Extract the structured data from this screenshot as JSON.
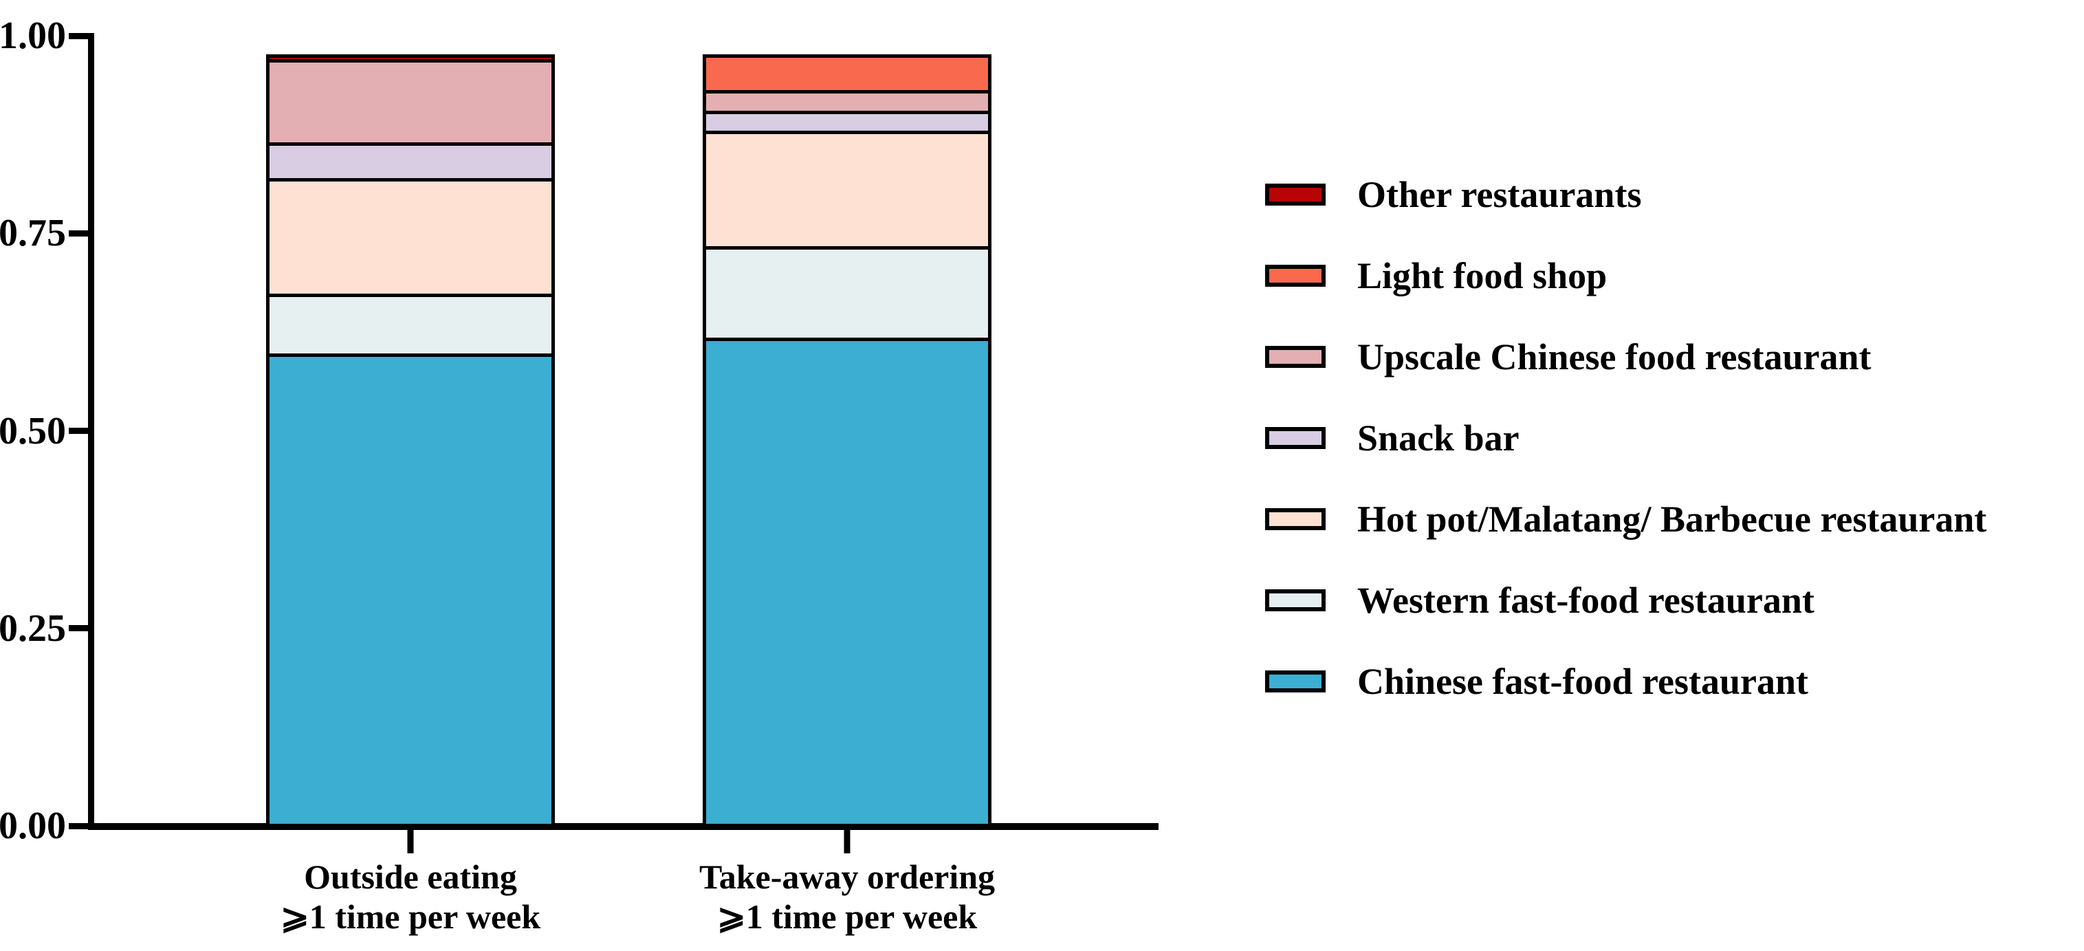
{
  "chart_data": {
    "type": "bar",
    "stacked": true,
    "title": "",
    "xlabel": "",
    "ylabel": "",
    "ylim": [
      0,
      1
    ],
    "grid": false,
    "bar_outline_color": "#000000",
    "yticks": [
      {
        "value": 1.0,
        "label": "1.00"
      },
      {
        "value": 0.75,
        "label": "0.75"
      },
      {
        "value": 0.5,
        "label": "0.50"
      },
      {
        "value": 0.25,
        "label": "0.25"
      },
      {
        "value": 0.0,
        "label": "0.00"
      }
    ],
    "categories": [
      {
        "line1": "Outside eating",
        "line2": "⩾1 time per week"
      },
      {
        "line1": "Take-away ordering",
        "line2": "⩾1 time per week"
      }
    ],
    "series": [
      {
        "name": "Chinese fast-food restaurant",
        "color": "#3CAED1",
        "values": [
          0.6,
          0.62
        ]
      },
      {
        "name": "Western fast-food restaurant",
        "color": "#E6F0F0",
        "values": [
          0.08,
          0.12
        ]
      },
      {
        "name": "Hot pot/Malatang/ Barbecue restaurant",
        "color": "#FEE1D2",
        "values": [
          0.15,
          0.15
        ]
      },
      {
        "name": "Snack bar",
        "color": "#D8CDE3",
        "values": [
          0.05,
          0.03
        ]
      },
      {
        "name": "Upscale Chinese food restaurant",
        "color": "#E3AFB2",
        "values": [
          0.11,
          0.03
        ]
      },
      {
        "name": "Light food shop",
        "color": "#F8694E",
        "values": [
          0.0,
          0.05
        ]
      },
      {
        "name": "Other restaurants",
        "color": "#B80404",
        "values": [
          0.01,
          0.0
        ]
      }
    ],
    "legend": {
      "position": "right",
      "order_top_to_bottom": [
        "Other restaurants",
        "Light food shop",
        "Upscale Chinese food restaurant",
        "Snack bar",
        "Hot pot/Malatang/ Barbecue restaurant",
        "Western fast-food restaurant",
        "Chinese fast-food restaurant"
      ]
    }
  }
}
